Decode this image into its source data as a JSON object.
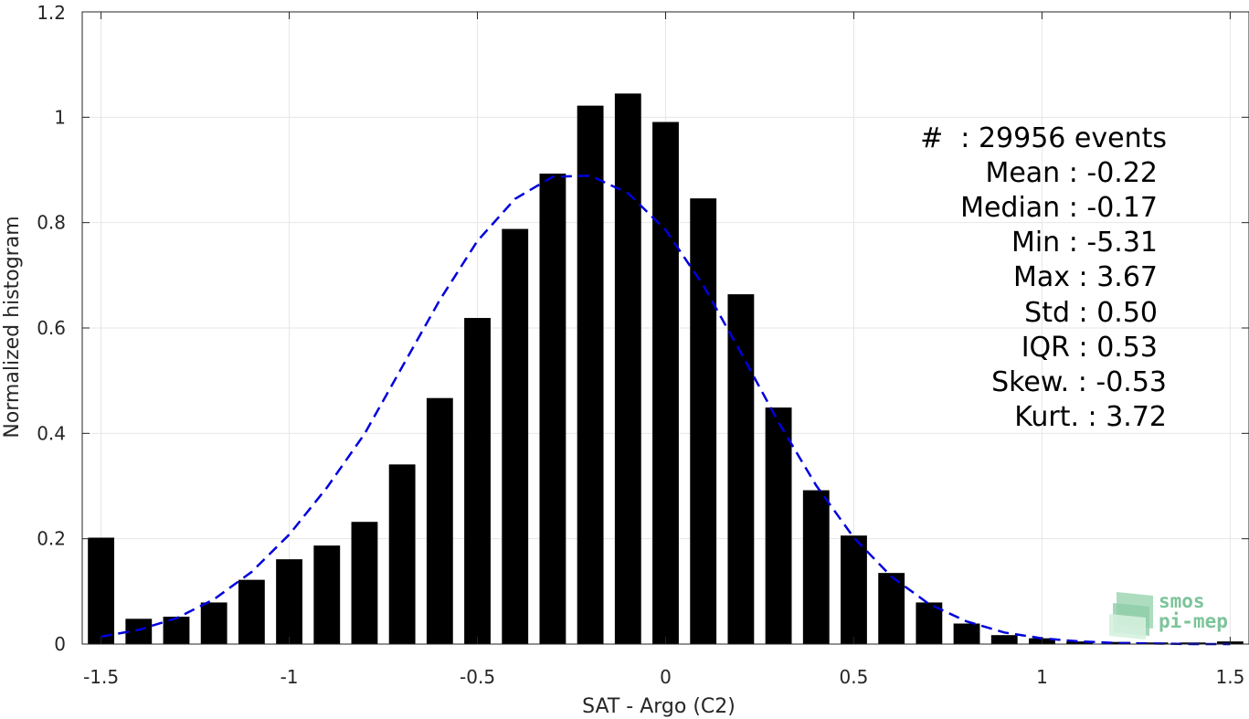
{
  "chart_data": {
    "type": "bar",
    "xlabel": "SAT - Argo (C2)",
    "ylabel": "Normalized histogram",
    "xlim": [
      -1.55,
      1.55
    ],
    "ylim": [
      0,
      1.2
    ],
    "xticks": [
      -1.5,
      -1,
      -0.5,
      0,
      0.5,
      1,
      1.5
    ],
    "xtick_labels": [
      "-1.5",
      "-1",
      "-0.5",
      "0",
      "0.5",
      "1",
      "1.5"
    ],
    "yticks": [
      0,
      0.2,
      0.4,
      0.6,
      0.8,
      1,
      1.2
    ],
    "ytick_labels": [
      "0",
      "0.2",
      "0.4",
      "0.6",
      "0.8",
      "1",
      "1.2"
    ],
    "grid": true,
    "bar_color": "#000000",
    "bar_width": 0.07,
    "bars": {
      "x": [
        -1.5,
        -1.4,
        -1.3,
        -1.2,
        -1.1,
        -1.0,
        -0.9,
        -0.8,
        -0.7,
        -0.6,
        -0.5,
        -0.4,
        -0.3,
        -0.2,
        -0.1,
        0.0,
        0.1,
        0.2,
        0.3,
        0.4,
        0.5,
        0.6,
        0.7,
        0.8,
        0.9,
        1.0,
        1.1,
        1.2,
        1.3,
        1.4,
        1.5
      ],
      "values": [
        0.202,
        0.048,
        0.052,
        0.079,
        0.122,
        0.161,
        0.187,
        0.232,
        0.341,
        0.467,
        0.619,
        0.788,
        0.893,
        1.022,
        1.045,
        0.991,
        0.846,
        0.664,
        0.449,
        0.292,
        0.206,
        0.135,
        0.079,
        0.039,
        0.017,
        0.011,
        0.005,
        0.004,
        0.003,
        0.003,
        0.005
      ]
    },
    "fit_curve": {
      "style": "dashed",
      "color": "#0000dd",
      "x": [
        -1.5,
        -1.4,
        -1.3,
        -1.2,
        -1.1,
        -1.0,
        -0.9,
        -0.8,
        -0.7,
        -0.6,
        -0.5,
        -0.4,
        -0.3,
        -0.2,
        -0.1,
        0.0,
        0.1,
        0.2,
        0.3,
        0.4,
        0.5,
        0.6,
        0.7,
        0.8,
        0.9,
        1.0,
        1.1,
        1.2,
        1.3,
        1.4,
        1.5
      ],
      "y": [
        0.014,
        0.027,
        0.049,
        0.085,
        0.137,
        0.208,
        0.297,
        0.399,
        0.526,
        0.653,
        0.765,
        0.845,
        0.887,
        0.889,
        0.856,
        0.786,
        0.681,
        0.553,
        0.421,
        0.301,
        0.202,
        0.128,
        0.076,
        0.043,
        0.022,
        0.011,
        0.005,
        0.002,
        0.001,
        0.0,
        0.0
      ]
    },
    "stats": {
      "events": "#  : 29956 events",
      "mean": "Mean : -0.22",
      "median": "Median : -0.17",
      "min": "Min : -5.31",
      "max": "Max : 3.67",
      "std": "Std : 0.50",
      "iqr": "IQR : 0.53",
      "skew": "Skew. : -0.53",
      "kurt": "Kurt. : 3.72"
    }
  },
  "logo": {
    "line1": "smos",
    "line2": "pi-mep",
    "color": "#7cc49a"
  }
}
